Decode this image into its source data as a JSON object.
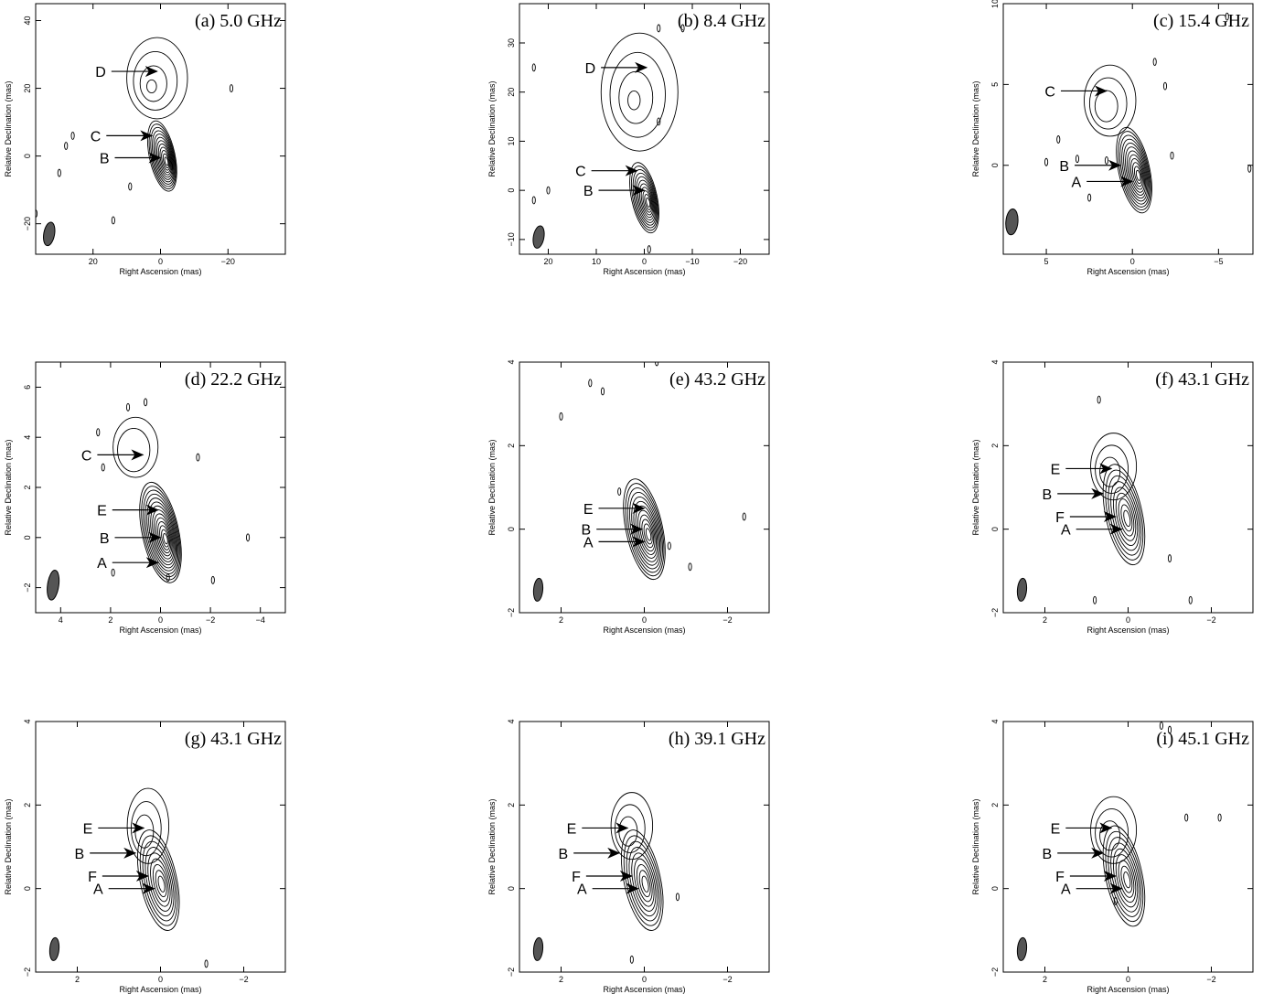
{
  "chart_data": [
    {
      "type": "contour",
      "title": "(a) 5.0 GHz",
      "xlabel": "Right Ascension  (mas)",
      "ylabel": "Relative Declination  (mas)",
      "xlim": [
        37,
        -37
      ],
      "ylim": [
        -29,
        45
      ],
      "xticks": [
        20,
        0,
        -20
      ],
      "yticks": [
        -20,
        0,
        20,
        40
      ],
      "beam": {
        "x": 33,
        "y": -23,
        "major": 7,
        "minor": 3.2,
        "pa_deg": -10
      },
      "core": {
        "x": -0.5,
        "y": 0,
        "levels": 12
      },
      "blobs": [
        {
          "x": 1,
          "y": 23,
          "rx": 9,
          "ry": 12,
          "n": 4
        }
      ],
      "specks": [
        [
          26,
          6
        ],
        [
          28,
          3
        ],
        [
          -21,
          20
        ],
        [
          14,
          -19
        ],
        [
          37,
          -17
        ],
        [
          20,
          -30
        ],
        [
          30,
          -5
        ],
        [
          9,
          -9
        ]
      ],
      "components": [
        {
          "label": "D",
          "x": 1,
          "y": 25
        },
        {
          "label": "C",
          "x": 2.5,
          "y": 6
        },
        {
          "label": "B",
          "x": 0,
          "y": -0.5
        }
      ]
    },
    {
      "type": "contour",
      "title": "(b) 8.4 GHz",
      "xlabel": "Right Ascension  (mas)",
      "ylabel": "Relative Declination  (mas)",
      "xlim": [
        26,
        -26
      ],
      "ylim": [
        -13,
        38
      ],
      "xticks": [
        20,
        10,
        0,
        -10,
        -20
      ],
      "yticks": [
        -10,
        0,
        10,
        20,
        30
      ],
      "beam": {
        "x": 22,
        "y": -9.5,
        "major": 4.6,
        "minor": 2.2,
        "pa_deg": -10
      },
      "core": {
        "x": 0,
        "y": -1.5,
        "levels": 11
      },
      "blobs": [
        {
          "x": 1,
          "y": 20,
          "rx": 8,
          "ry": 12,
          "n": 5
        }
      ],
      "specks": [
        [
          23,
          25
        ],
        [
          -3,
          33
        ],
        [
          20,
          0
        ],
        [
          -3,
          14
        ],
        [
          -8,
          33
        ],
        [
          -1,
          -12
        ],
        [
          23,
          -2
        ]
      ],
      "components": [
        {
          "label": "D",
          "x": -0.5,
          "y": 25
        },
        {
          "label": "C",
          "x": 1.5,
          "y": 4
        },
        {
          "label": "B",
          "x": 0,
          "y": 0
        }
      ]
    },
    {
      "type": "contour",
      "title": "(c) 15.4 GHz",
      "xlabel": "Right Ascension  (mas)",
      "ylabel": "Relative Declination  (mas)",
      "xlim": [
        7.5,
        -7
      ],
      "ylim": [
        -5.5,
        10
      ],
      "xticks": [
        5,
        0,
        -5
      ],
      "yticks": [
        0,
        5,
        10
      ],
      "beam": {
        "x": 7,
        "y": -3.5,
        "major": 1.6,
        "minor": 0.7,
        "pa_deg": -5
      },
      "core": {
        "x": -0.1,
        "y": -0.3,
        "levels": 12
      },
      "blobs": [
        {
          "x": 1.3,
          "y": 4,
          "rx": 1.5,
          "ry": 2.2,
          "n": 3
        }
      ],
      "specks": [
        [
          4.3,
          1.6
        ],
        [
          2.5,
          -2
        ],
        [
          1.5,
          0.3
        ],
        [
          3.2,
          0.4
        ],
        [
          -1.9,
          4.9
        ],
        [
          -2.3,
          0.6
        ],
        [
          -1.3,
          6.4
        ],
        [
          5,
          0.2
        ],
        [
          -6.8,
          -0.2
        ],
        [
          -5.5,
          9.2
        ]
      ],
      "components": [
        {
          "label": "C",
          "x": 1.5,
          "y": 4.6
        },
        {
          "label": "B",
          "x": 0.7,
          "y": 0
        },
        {
          "label": "A",
          "x": 0,
          "y": -1
        }
      ]
    },
    {
      "type": "contour",
      "title": "(d) 22.2 GHz",
      "xlabel": "Right Ascension  (mas)",
      "ylabel": "Relative Declination  (mas)",
      "xlim": [
        5,
        -5
      ],
      "ylim": [
        -3,
        7
      ],
      "xticks": [
        4,
        2,
        0,
        -2,
        -4
      ],
      "yticks": [
        -2,
        0,
        2,
        4,
        6
      ],
      "beam": {
        "x": 4.3,
        "y": -1.9,
        "major": 1.2,
        "minor": 0.45,
        "pa_deg": -8
      },
      "core": {
        "x": 0,
        "y": 0.2,
        "levels": 14
      },
      "blobs": [
        {
          "x": 1,
          "y": 3.6,
          "rx": 0.9,
          "ry": 1.2,
          "n": 2
        }
      ],
      "specks": [
        [
          1.3,
          5.2
        ],
        [
          0.6,
          5.4
        ],
        [
          2.5,
          4.2
        ],
        [
          -1.5,
          3.2
        ],
        [
          2.3,
          2.8
        ],
        [
          1.9,
          -1.4
        ],
        [
          -3.5,
          0
        ],
        [
          -2.1,
          -1.7
        ],
        [
          -0.3,
          -1.6
        ]
      ],
      "components": [
        {
          "label": "C",
          "x": 0.7,
          "y": 3.3
        },
        {
          "label": "E",
          "x": 0.1,
          "y": 1.1
        },
        {
          "label": "B",
          "x": 0,
          "y": 0
        },
        {
          "label": "A",
          "x": 0.1,
          "y": -1
        }
      ]
    },
    {
      "type": "contour",
      "title": "(e) 43.2 GHz",
      "xlabel": "Right Ascension  (mas)",
      "ylabel": "Relative Declination  (mas)",
      "xlim": [
        3,
        -3
      ],
      "ylim": [
        -2,
        4
      ],
      "xticks": [
        2,
        0,
        -2
      ],
      "yticks": [
        -2,
        0,
        2,
        4
      ],
      "beam": {
        "x": 2.55,
        "y": -1.45,
        "major": 0.55,
        "minor": 0.22,
        "pa_deg": -5
      },
      "core": {
        "x": 0,
        "y": 0,
        "levels": 12
      },
      "blobs": [],
      "specks": [
        [
          1.3,
          3.5
        ],
        [
          1,
          3.3
        ],
        [
          2.0,
          2.7
        ],
        [
          0.6,
          0.9
        ],
        [
          -0.6,
          -0.4
        ],
        [
          -1.1,
          -0.9
        ],
        [
          -2.4,
          0.3
        ],
        [
          -0.3,
          4
        ]
      ],
      "components": [
        {
          "label": "E",
          "x": 0,
          "y": 0.5
        },
        {
          "label": "B",
          "x": 0.05,
          "y": 0
        },
        {
          "label": "A",
          "x": 0,
          "y": -0.3
        }
      ]
    },
    {
      "type": "contour",
      "title": "(f) 43.1 GHz",
      "xlabel": "Right Ascension  (mas)",
      "ylabel": "Relative Declination  (mas)",
      "xlim": [
        3,
        -3
      ],
      "ylim": [
        -2,
        4
      ],
      "xticks": [
        2,
        0,
        -2
      ],
      "yticks": [
        -2,
        0,
        2,
        4
      ],
      "beam": {
        "x": 2.55,
        "y": -1.45,
        "major": 0.55,
        "minor": 0.22,
        "pa_deg": -5
      },
      "core": {
        "x": 0.1,
        "y": 0.35,
        "levels": 9
      },
      "blobs": [
        {
          "x": 0.35,
          "y": 1.5,
          "rx": 0.55,
          "ry": 0.8,
          "n": 3
        }
      ],
      "specks": [
        [
          0.7,
          3.1
        ],
        [
          -1,
          -0.7
        ],
        [
          0.8,
          -1.7
        ],
        [
          -1.5,
          -1.7
        ]
      ],
      "components": [
        {
          "label": "E",
          "x": 0.4,
          "y": 1.45
        },
        {
          "label": "B",
          "x": 0.6,
          "y": 0.85
        },
        {
          "label": "F",
          "x": 0.3,
          "y": 0.3
        },
        {
          "label": "A",
          "x": 0.15,
          "y": 0
        }
      ]
    },
    {
      "type": "contour",
      "title": "(g) 43.1 GHz",
      "xlabel": "Right Ascension  (mas)",
      "ylabel": "Relative Declination  (mas)",
      "xlim": [
        3,
        -3
      ],
      "ylim": [
        -2,
        4
      ],
      "xticks": [
        2,
        0,
        -2
      ],
      "yticks": [
        -2,
        0,
        2,
        4
      ],
      "beam": {
        "x": 2.55,
        "y": -1.45,
        "major": 0.55,
        "minor": 0.22,
        "pa_deg": -5
      },
      "core": {
        "x": 0.05,
        "y": 0.2,
        "levels": 9
      },
      "blobs": [
        {
          "x": 0.3,
          "y": 1.5,
          "rx": 0.5,
          "ry": 0.9,
          "n": 3
        }
      ],
      "specks": [
        [
          -1.1,
          -1.8
        ]
      ],
      "components": [
        {
          "label": "E",
          "x": 0.4,
          "y": 1.45
        },
        {
          "label": "B",
          "x": 0.6,
          "y": 0.85
        },
        {
          "label": "F",
          "x": 0.3,
          "y": 0.3
        },
        {
          "label": "A",
          "x": 0.15,
          "y": 0
        }
      ]
    },
    {
      "type": "contour",
      "title": "(h) 39.1 GHz",
      "xlabel": "Right Ascension  (mas)",
      "ylabel": "Relative Declination  (mas)",
      "xlim": [
        3,
        -3
      ],
      "ylim": [
        -2,
        4
      ],
      "xticks": [
        2,
        0,
        -2
      ],
      "yticks": [
        -2,
        0,
        2,
        4
      ],
      "beam": {
        "x": 2.55,
        "y": -1.45,
        "major": 0.55,
        "minor": 0.22,
        "pa_deg": -5
      },
      "core": {
        "x": 0.05,
        "y": 0.2,
        "levels": 9
      },
      "blobs": [
        {
          "x": 0.3,
          "y": 1.5,
          "rx": 0.5,
          "ry": 0.8,
          "n": 3
        }
      ],
      "specks": [
        [
          -0.8,
          -0.2
        ],
        [
          0.3,
          -1.7
        ]
      ],
      "components": [
        {
          "label": "E",
          "x": 0.4,
          "y": 1.45
        },
        {
          "label": "B",
          "x": 0.6,
          "y": 0.85
        },
        {
          "label": "F",
          "x": 0.3,
          "y": 0.3
        },
        {
          "label": "A",
          "x": 0.15,
          "y": 0
        }
      ]
    },
    {
      "type": "contour",
      "title": "(i) 45.1 GHz",
      "xlabel": "Right Ascension  (mas)",
      "ylabel": "Relative Declination  (mas)",
      "xlim": [
        3,
        -3
      ],
      "ylim": [
        -2,
        4
      ],
      "xticks": [
        2,
        0,
        -2
      ],
      "yticks": [
        -2,
        0,
        2,
        4
      ],
      "beam": {
        "x": 2.55,
        "y": -1.45,
        "major": 0.55,
        "minor": 0.22,
        "pa_deg": -5
      },
      "core": {
        "x": 0.1,
        "y": 0.3,
        "levels": 9
      },
      "blobs": [
        {
          "x": 0.35,
          "y": 1.4,
          "rx": 0.55,
          "ry": 0.8,
          "n": 3
        }
      ],
      "specks": [
        [
          -1.4,
          1.7
        ],
        [
          -2.2,
          1.7
        ],
        [
          -0.8,
          3.9
        ],
        [
          -1,
          3.8
        ],
        [
          0.3,
          -0.3
        ]
      ],
      "components": [
        {
          "label": "E",
          "x": 0.4,
          "y": 1.45
        },
        {
          "label": "B",
          "x": 0.6,
          "y": 0.85
        },
        {
          "label": "F",
          "x": 0.3,
          "y": 0.3
        },
        {
          "label": "A",
          "x": 0.15,
          "y": 0
        }
      ]
    }
  ]
}
